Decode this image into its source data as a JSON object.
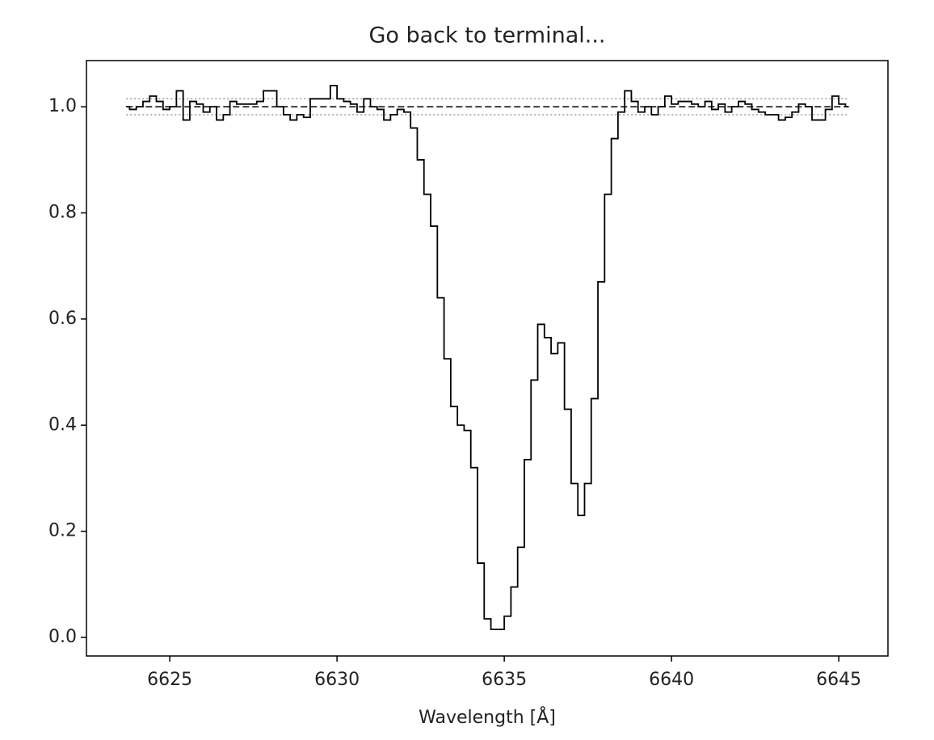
{
  "chart_data": {
    "type": "step",
    "title": "Go back to terminal...",
    "x_label": "Wavelength  [Å]",
    "x": [
      6623.7,
      6623.9,
      6624.1,
      6624.3,
      6624.5,
      6624.7,
      6624.9,
      6625.1,
      6625.3,
      6625.5,
      6625.7,
      6625.9,
      6626.1,
      6626.3,
      6626.5,
      6626.7,
      6626.9,
      6627.1,
      6627.3,
      6627.5,
      6627.7,
      6627.9,
      6628.1,
      6628.3,
      6628.5,
      6628.7,
      6628.9,
      6629.1,
      6629.3,
      6629.5,
      6629.7,
      6629.9,
      6630.1,
      6630.3,
      6630.5,
      6630.7,
      6630.9,
      6631.1,
      6631.3,
      6631.5,
      6631.7,
      6631.9,
      6632.1,
      6632.3,
      6632.5,
      6632.7,
      6632.9,
      6633.1,
      6633.3,
      6633.5,
      6633.7,
      6633.9,
      6634.1,
      6634.3,
      6634.5,
      6634.7,
      6634.9,
      6635.1,
      6635.3,
      6635.5,
      6635.7,
      6635.9,
      6636.1,
      6636.3,
      6636.5,
      6636.7,
      6636.9,
      6637.1,
      6637.3,
      6637.5,
      6637.7,
      6637.9,
      6638.1,
      6638.3,
      6638.5,
      6638.7,
      6638.9,
      6639.1,
      6639.3,
      6639.5,
      6639.7,
      6639.9,
      6640.1,
      6640.3,
      6640.5,
      6640.7,
      6640.9,
      6641.1,
      6641.3,
      6641.5,
      6641.7,
      6641.9,
      6642.1,
      6642.3,
      6642.5,
      6642.7,
      6642.9,
      6643.1,
      6643.3,
      6643.5,
      6643.7,
      6643.9,
      6644.1,
      6644.3,
      6644.5,
      6644.7,
      6644.9,
      6645.1,
      6645.3
    ],
    "values": [
      1.0,
      0.995,
      1.0,
      1.01,
      1.02,
      1.01,
      0.995,
      1.0,
      1.03,
      0.975,
      1.01,
      1.005,
      0.99,
      1.0,
      0.975,
      0.985,
      1.01,
      1.005,
      1.005,
      1.005,
      1.01,
      1.03,
      1.03,
      1.0,
      0.985,
      0.975,
      0.985,
      0.98,
      1.015,
      1.015,
      1.015,
      1.04,
      1.015,
      1.01,
      1.005,
      0.99,
      1.015,
      1.0,
      0.995,
      0.975,
      0.985,
      0.995,
      0.99,
      0.96,
      0.9,
      0.835,
      0.775,
      0.64,
      0.525,
      0.435,
      0.4,
      0.39,
      0.32,
      0.14,
      0.035,
      0.015,
      0.015,
      0.04,
      0.095,
      0.17,
      0.335,
      0.485,
      0.59,
      0.565,
      0.535,
      0.555,
      0.43,
      0.29,
      0.23,
      0.29,
      0.45,
      0.67,
      0.835,
      0.94,
      0.99,
      1.03,
      1.01,
      0.99,
      1.0,
      0.985,
      1.0,
      1.02,
      1.005,
      1.01,
      1.01,
      1.005,
      1.0,
      1.01,
      0.995,
      1.005,
      0.99,
      1.0,
      1.01,
      1.005,
      0.995,
      0.99,
      0.985,
      0.985,
      0.975,
      0.98,
      0.99,
      1.005,
      1.0,
      0.975,
      0.975,
      0.995,
      1.02,
      1.005,
      1.0
    ],
    "color": "#000000",
    "hlines": [
      {
        "value": 1.0,
        "style": "dashed",
        "color": "#000000"
      },
      {
        "value": 1.015,
        "style": "dotted",
        "color": "#999999"
      },
      {
        "value": 0.985,
        "style": "dotted",
        "color": "#999999"
      }
    ],
    "xlim": [
      6622.51,
      6646.47
    ],
    "ylim": [
      -0.035,
      1.087
    ],
    "xticks": [
      6625,
      6630,
      6635,
      6640,
      6645
    ],
    "yticks": [
      {
        "value": 0,
        "label": "0.0"
      },
      0.2,
      0.4,
      0.6,
      0.8,
      {
        "value": 1,
        "label": "1.0"
      }
    ]
  }
}
